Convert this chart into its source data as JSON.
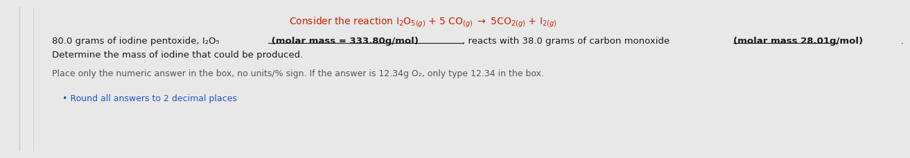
{
  "title": "Consider the reaction I$_2$O$_{5(g)}$ + 5 CO$_{(g)}$ $\\rightarrow$ 5CO$_{2(g)}$ + I$_{2(g)}$",
  "title_color": "#cc2200",
  "line1a": "80.0 grams of iodine pentoxide, I",
  "line1b": "₂O₅",
  "line1c": " (molar mass = 333.80g/mol)",
  "line1d": ", reacts with 38.0 grams of carbon monoxide ",
  "line1e": "(molar mass 28.01g/mol)",
  "line1f": ".",
  "line2": "Determine the mass of iodine that could be produced.",
  "line3": "Place only the numeric answer in the box, no units/% sign. If the answer is 12.34g O₂, only type 12.34 in the box.",
  "bullet": "Round all answers to 2 decimal places",
  "text_color": "#1a1a1a",
  "gray_color": "#555555",
  "blue_color": "#2255cc",
  "bg_color": "#e8e8e8",
  "font_size": 9.5,
  "title_font_size": 10.0
}
